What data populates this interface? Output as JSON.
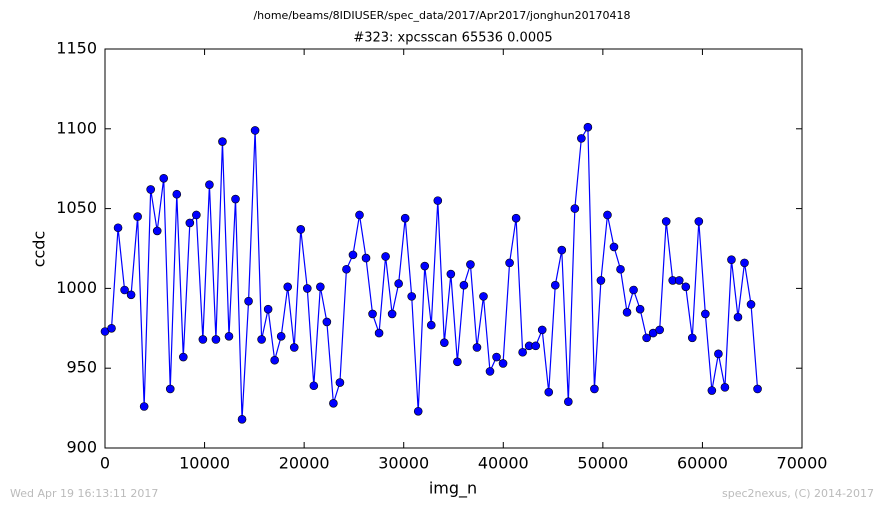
{
  "chart_data": {
    "type": "line",
    "suptitle": "/home/beams/8IDIUSER/spec_data/2017/Apr2017/jonghun20170418",
    "title": "#323: xpcsscan 65536 0.0005",
    "xlabel": "img_n",
    "ylabel": "ccdc",
    "footer_left": "Wed Apr 19 16:13:11 2017",
    "footer_right": "spec2nexus, (C) 2014-2017",
    "xlim": [
      0,
      70000
    ],
    "xticks": [
      0,
      10000,
      20000,
      30000,
      40000,
      50000,
      60000,
      70000
    ],
    "ylim": [
      900,
      1150
    ],
    "yticks": [
      900,
      950,
      1000,
      1050,
      1100,
      1150
    ],
    "x": [
      0,
      655,
      1311,
      1966,
      2621,
      3277,
      3932,
      4588,
      5243,
      5898,
      6554,
      7209,
      7864,
      8520,
      9175,
      9830,
      10486,
      11141,
      11796,
      12452,
      13107,
      13763,
      14418,
      15073,
      15729,
      16384,
      17039,
      17695,
      18350,
      19005,
      19661,
      20316,
      20972,
      21627,
      22282,
      22938,
      23593,
      24248,
      24904,
      25559,
      26214,
      26870,
      27525,
      28180,
      28836,
      29491,
      30147,
      30802,
      31457,
      32113,
      32768,
      33423,
      34079,
      34734,
      35389,
      36045,
      36700,
      37356,
      38011,
      38666,
      39322,
      39977,
      40632,
      41288,
      41943,
      42598,
      43254,
      43909,
      44564,
      45220,
      45875,
      46531,
      47186,
      47841,
      48497,
      49152,
      49807,
      50463,
      51118,
      51773,
      52429,
      53084,
      53740,
      54395,
      55050,
      55706,
      56361,
      57016,
      57672,
      58327,
      58982,
      59638,
      60293,
      60948,
      61604,
      62259,
      62915,
      63570,
      64225,
      64881,
      65536
    ],
    "series": [
      {
        "color": "#0000ff",
        "values": [
          973,
          975,
          1038,
          999,
          996,
          1045,
          926,
          1062,
          1036,
          1069,
          937,
          1059,
          957,
          1041,
          1046,
          968,
          1065,
          968,
          1092,
          970,
          1056,
          918,
          992,
          1099,
          968,
          987,
          955,
          970,
          1001,
          963,
          1037,
          1000,
          939,
          1001,
          979,
          928,
          941,
          1012,
          1021,
          1046,
          1019,
          984,
          972,
          1020,
          984,
          1003,
          1044,
          995,
          923,
          1014,
          977,
          1055,
          966,
          1009,
          954,
          1002,
          1015,
          963,
          995,
          948,
          957,
          953,
          1016,
          1044,
          960,
          964,
          964,
          974,
          935,
          1002,
          1024,
          929,
          1050,
          1094,
          1101,
          937,
          1005,
          1046,
          1026,
          1012,
          985,
          999,
          987,
          969,
          972,
          974,
          1042,
          1005,
          1005,
          1001,
          969,
          1042,
          984,
          936,
          959,
          938,
          1018,
          982,
          1016,
          990,
          937
        ]
      }
    ]
  }
}
